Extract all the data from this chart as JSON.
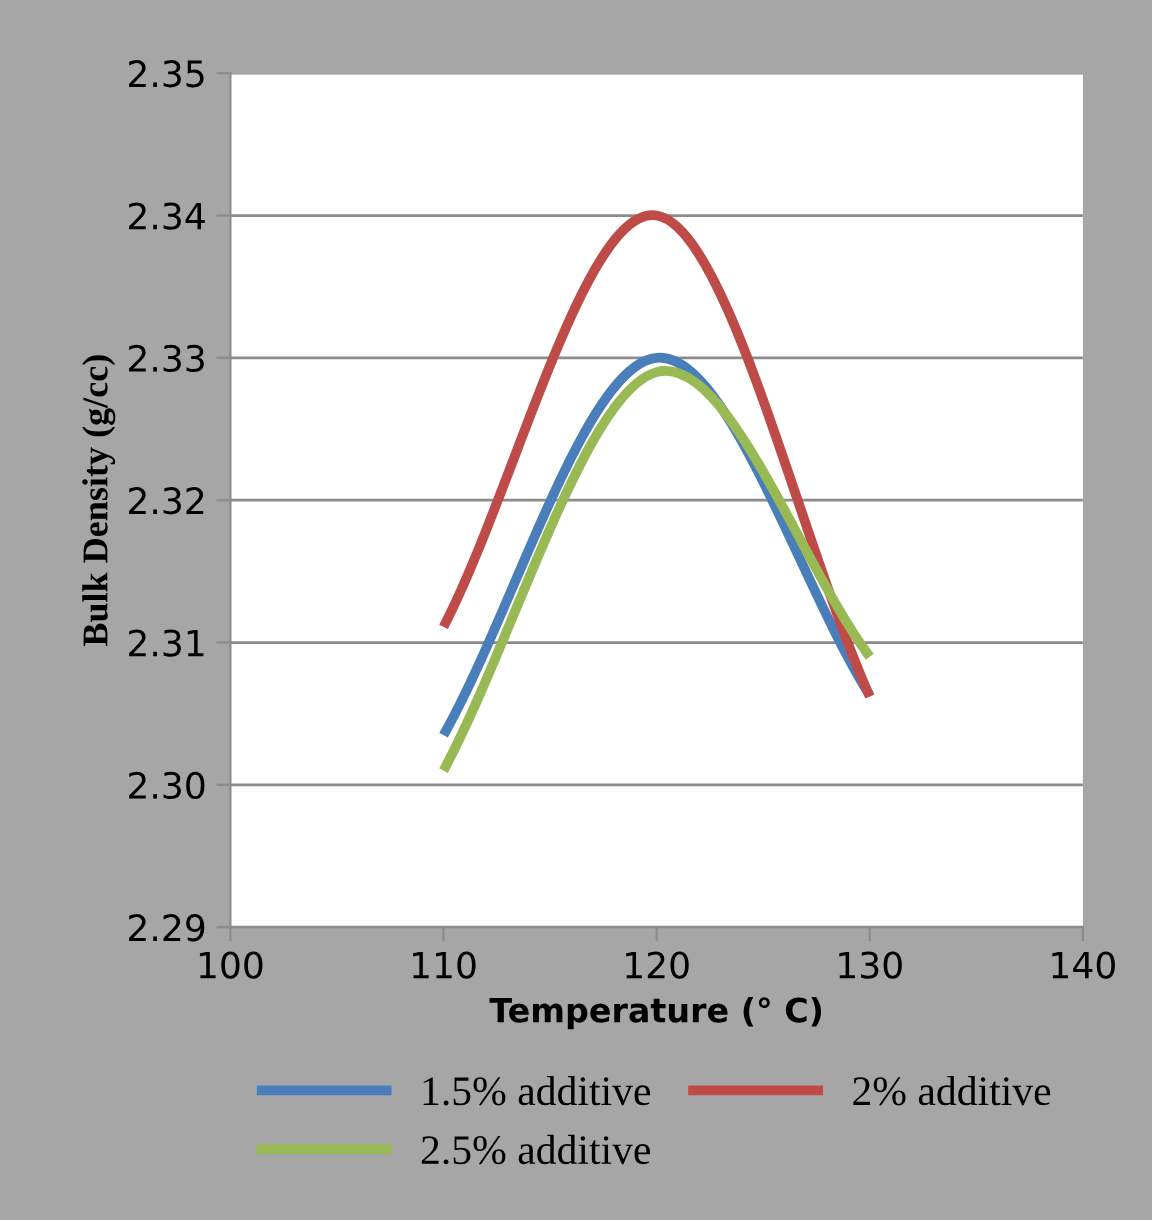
{
  "chart_data": {
    "type": "line",
    "xlabel": "Temperature (° C)",
    "ylabel": "Bulk Density (g/cc)",
    "x": [
      110,
      120,
      130
    ],
    "series": [
      {
        "name": "1.5% additive",
        "color": "#4a7ebb",
        "values": [
          2.3035,
          2.33,
          2.3063
        ]
      },
      {
        "name": "2% additive",
        "color": "#be4b48",
        "values": [
          2.3111,
          2.34,
          2.3062
        ]
      },
      {
        "name": "2.5% additive",
        "color": "#98b954",
        "values": [
          2.301,
          2.329,
          2.309
        ]
      }
    ],
    "xlim": [
      100,
      140
    ],
    "xticks": [
      100,
      110,
      120,
      130,
      140
    ],
    "ylim": [
      2.29,
      2.35
    ],
    "yticks": [
      2.29,
      {
        "value": 2.3,
        "label": "2.30"
      },
      2.31,
      2.32,
      2.33,
      2.34,
      2.35
    ],
    "grid": "y",
    "legend": "bottom",
    "marker": "none",
    "line_style": "solid"
  }
}
